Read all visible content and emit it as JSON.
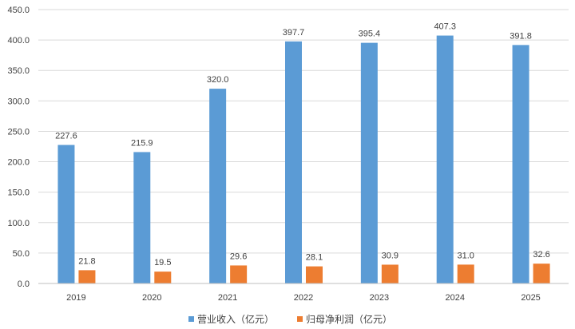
{
  "chart_data": {
    "type": "bar",
    "categories": [
      "2019",
      "2020",
      "2021",
      "2022",
      "2023",
      "2024",
      "2025"
    ],
    "series": [
      {
        "name": "营业收入（亿元）",
        "values": [
          227.6,
          215.9,
          320.0,
          397.7,
          395.4,
          407.3,
          391.8
        ],
        "labels": [
          "227.6",
          "215.9",
          "320.0",
          "397.7",
          "395.4",
          "407.3",
          "391.8"
        ],
        "color": "#5b9bd5"
      },
      {
        "name": "归母净利润（亿元）",
        "values": [
          21.8,
          19.5,
          29.6,
          28.1,
          30.9,
          31.0,
          32.6
        ],
        "labels": [
          "21.8",
          "19.5",
          "29.6",
          "28.1",
          "30.9",
          "31.0",
          "32.6"
        ],
        "color": "#ed7d31"
      }
    ],
    "y_ticks": [
      "0.0",
      "50.0",
      "100.0",
      "150.0",
      "200.0",
      "250.0",
      "300.0",
      "350.0",
      "400.0",
      "450.0"
    ],
    "ylim": [
      0,
      450
    ],
    "grid": true,
    "gridline_color": "#d9d9d9",
    "legend_position": "bottom"
  }
}
